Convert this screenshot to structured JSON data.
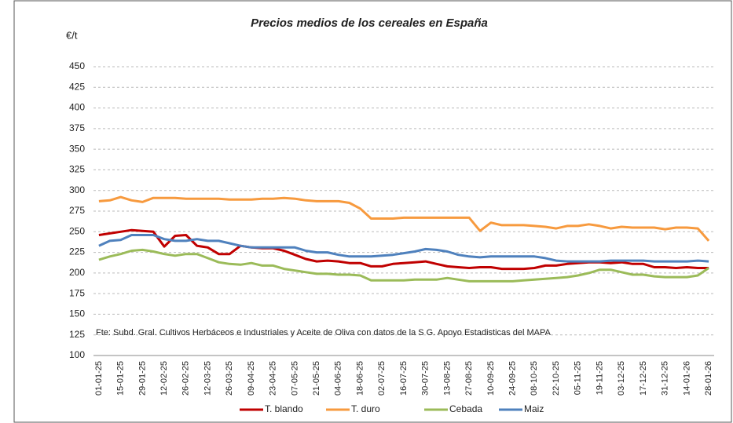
{
  "chart_data": {
    "type": "line",
    "title": "Precios medios de los cereales en España",
    "y_label": "€/t",
    "annotation": "Fte: Subd. Gral. Cultivos Herbáceos e Industriales y Aceite de Oliva con datos de la S G. Apoyo Estadisticas del MAPA",
    "categories": [
      "01-01-25",
      null,
      "15-01-25",
      null,
      "29-01-25",
      null,
      "12-02-25",
      null,
      "26-02-25",
      null,
      "12-03-25",
      null,
      "26-03-25",
      null,
      "09-04-25",
      null,
      "23-04-25",
      null,
      "07-05-25",
      null,
      "21-05-25",
      null,
      "04-06-25",
      null,
      "18-06-25",
      null,
      "02-07-25",
      null,
      "16-07-25",
      null,
      "30-07-25",
      null,
      "13-08-25",
      null,
      "27-08-25",
      null,
      "10-09-25",
      null,
      "24-09-25",
      null,
      "08-10-25",
      null,
      "22-10-25",
      null,
      "05-11-25",
      null,
      "19-11-25",
      null,
      "03-12-25",
      null,
      "17-12-25",
      null,
      "31-12-25",
      null,
      "14-01-26",
      null,
      "28-01-26"
    ],
    "series": [
      {
        "name": "T. blando",
        "color": "#c00000",
        "values": [
          246,
          248,
          250,
          252,
          251,
          250,
          232,
          245,
          246,
          233,
          231,
          223,
          223,
          233,
          231,
          230,
          230,
          227,
          222,
          217,
          214,
          215,
          214,
          212,
          212,
          208,
          208,
          211,
          212,
          213,
          214,
          211,
          208,
          207,
          206,
          207,
          207,
          205,
          205,
          205,
          206,
          209,
          209,
          211,
          212,
          213,
          213,
          212,
          213,
          211,
          211,
          207,
          207,
          206,
          207,
          206,
          206
        ]
      },
      {
        "name": "T. duro",
        "color": "#f79a3e",
        "values": [
          287,
          288,
          292,
          288,
          286,
          291,
          291,
          291,
          290,
          290,
          290,
          290,
          289,
          289,
          289,
          290,
          290,
          291,
          290,
          288,
          287,
          287,
          287,
          285,
          278,
          266,
          266,
          266,
          267,
          267,
          267,
          267,
          267,
          267,
          267,
          251,
          261,
          258,
          258,
          258,
          257,
          256,
          254,
          257,
          257,
          259,
          257,
          254,
          256,
          255,
          255,
          255,
          253,
          255,
          255,
          254,
          239
        ]
      },
      {
        "name": "Cebada",
        "color": "#9bbb59",
        "values": [
          216,
          220,
          223,
          227,
          228,
          226,
          223,
          221,
          223,
          223,
          218,
          213,
          211,
          210,
          212,
          209,
          209,
          205,
          203,
          201,
          199,
          199,
          198,
          198,
          197,
          191,
          191,
          191,
          191,
          192,
          192,
          192,
          194,
          192,
          190,
          190,
          190,
          190,
          190,
          191,
          192,
          193,
          194,
          195,
          197,
          200,
          204,
          204,
          201,
          198,
          198,
          196,
          195,
          195,
          195,
          197,
          206
        ]
      },
      {
        "name": "Maiz",
        "color": "#4f81bd",
        "values": [
          233,
          239,
          240,
          246,
          246,
          246,
          241,
          239,
          239,
          241,
          239,
          239,
          236,
          233,
          231,
          231,
          231,
          231,
          231,
          227,
          225,
          225,
          222,
          220,
          220,
          220,
          221,
          222,
          224,
          226,
          229,
          228,
          226,
          222,
          220,
          219,
          220,
          220,
          220,
          220,
          220,
          218,
          215,
          214,
          214,
          214,
          214,
          215,
          215,
          215,
          215,
          214,
          214,
          214,
          214,
          215,
          214
        ]
      }
    ],
    "ylim": [
      100,
      450
    ],
    "yticks": [
      100,
      125,
      150,
      175,
      200,
      225,
      250,
      275,
      300,
      325,
      350,
      375,
      400,
      425,
      450
    ],
    "grid": true
  }
}
